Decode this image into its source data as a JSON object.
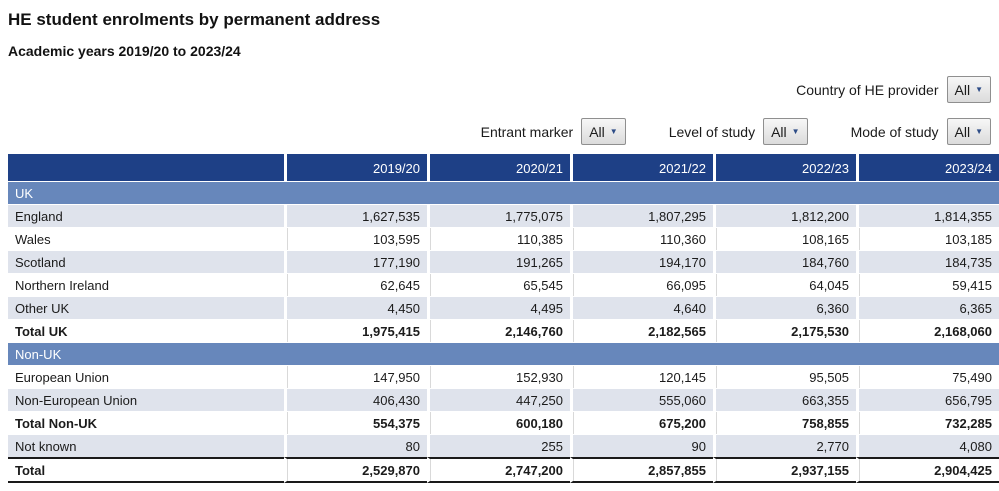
{
  "title": "HE student enrolments by permanent address",
  "subtitle": "Academic years 2019/20 to 2023/24",
  "filters": {
    "country": {
      "label": "Country of HE provider",
      "value": "All"
    },
    "entrant": {
      "label": "Entrant marker",
      "value": "All"
    },
    "level": {
      "label": "Level of study",
      "value": "All"
    },
    "mode": {
      "label": "Mode of study",
      "value": "All"
    }
  },
  "colors": {
    "header_bg": "#1e4086",
    "section_bg": "#6787bb",
    "shaded_row_bg": "#dfe3ec",
    "dark_border": "#1a1a1a",
    "caret": "#2e4d87"
  },
  "table": {
    "columns": [
      "",
      "2019/20",
      "2020/21",
      "2021/22",
      "2022/23",
      "2023/24"
    ],
    "rows": [
      {
        "type": "section",
        "label": "UK"
      },
      {
        "type": "data",
        "shaded": true,
        "label": "England",
        "values": [
          "1,627,535",
          "1,775,075",
          "1,807,295",
          "1,812,200",
          "1,814,355"
        ]
      },
      {
        "type": "data",
        "shaded": false,
        "label": "Wales",
        "values": [
          "103,595",
          "110,385",
          "110,360",
          "108,165",
          "103,185"
        ]
      },
      {
        "type": "data",
        "shaded": true,
        "label": "Scotland",
        "values": [
          "177,190",
          "191,265",
          "194,170",
          "184,760",
          "184,735"
        ]
      },
      {
        "type": "data",
        "shaded": false,
        "label": "Northern Ireland",
        "values": [
          "62,645",
          "65,545",
          "66,095",
          "64,045",
          "59,415"
        ]
      },
      {
        "type": "data",
        "shaded": true,
        "label": "Other UK",
        "values": [
          "4,450",
          "4,495",
          "4,640",
          "6,360",
          "6,365"
        ]
      },
      {
        "type": "total",
        "shaded": false,
        "label": "Total UK",
        "values": [
          "1,975,415",
          "2,146,760",
          "2,182,565",
          "2,175,530",
          "2,168,060"
        ]
      },
      {
        "type": "section",
        "label": "Non-UK"
      },
      {
        "type": "data",
        "shaded": false,
        "label": "European Union",
        "values": [
          "147,950",
          "152,930",
          "120,145",
          "95,505",
          "75,490"
        ]
      },
      {
        "type": "data",
        "shaded": true,
        "label": "Non-European Union",
        "values": [
          "406,430",
          "447,250",
          "555,060",
          "663,355",
          "656,795"
        ]
      },
      {
        "type": "total",
        "shaded": false,
        "label": "Total Non-UK",
        "values": [
          "554,375",
          "600,180",
          "675,200",
          "758,855",
          "732,285"
        ]
      },
      {
        "type": "data",
        "shaded": true,
        "label": "Not known",
        "values": [
          "80",
          "255",
          "90",
          "2,770",
          "4,080"
        ]
      },
      {
        "type": "grand",
        "shaded": false,
        "label": "Total",
        "values": [
          "2,529,870",
          "2,747,200",
          "2,857,855",
          "2,937,155",
          "2,904,425"
        ]
      }
    ]
  }
}
